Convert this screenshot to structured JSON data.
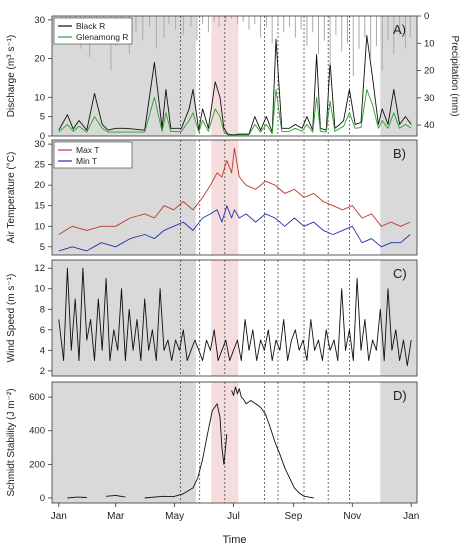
{
  "figure": {
    "xlabel": "Time",
    "month_ticks": [
      "Jan",
      "Mar",
      "May",
      "Jul",
      "Sep",
      "Nov",
      "Jan"
    ],
    "month_tick_days": [
      1,
      60,
      121,
      182,
      244,
      305,
      366
    ],
    "colors": {
      "background_shade": "#d9d9d9",
      "highlight_shade": "#f6dddd",
      "vline": "#333333",
      "precip": "#aaaaaa",
      "black_r": "#111111",
      "glenamong_r": "#2ca02c",
      "max_t": "#c0392b",
      "min_t": "#2233aa",
      "line": "#111111"
    }
  },
  "chart_data": [
    {
      "id": "A",
      "type": "line",
      "panel_label": "A)",
      "ylabel": "Discharge (m³ s⁻¹)",
      "ylabel_right": "Precipitation (mm)",
      "yticks": [
        0,
        5,
        10,
        20,
        30
      ],
      "ylim": [
        0,
        31
      ],
      "y2ticks": [
        0,
        10,
        20,
        30,
        40
      ],
      "y2lim": [
        0,
        44
      ],
      "series": [
        {
          "name": "Black R",
          "x": [
            1,
            10,
            16,
            22,
            30,
            38,
            46,
            52,
            60,
            64,
            70,
            90,
            100,
            108,
            112,
            117,
            121,
            128,
            136,
            140,
            146,
            150,
            156,
            163,
            168,
            172,
            176,
            182,
            187,
            193,
            198,
            204,
            210,
            216,
            222,
            226,
            232,
            240,
            246,
            253,
            258,
            264,
            268,
            272,
            278,
            282,
            287,
            292,
            296,
            302,
            308,
            314,
            320,
            326,
            332,
            336,
            342,
            348,
            354,
            360,
            366
          ],
          "y": [
            1.5,
            5.5,
            1.8,
            4,
            1.5,
            11,
            3,
            1.5,
            2,
            2,
            2,
            1.5,
            19,
            2,
            12,
            2,
            2,
            2,
            7,
            12,
            1.5,
            7,
            2,
            14,
            10,
            2,
            0.5,
            0.3,
            0.5,
            0.5,
            0.5,
            5,
            1.5,
            5,
            1,
            25,
            2,
            2,
            3,
            2,
            5,
            1.5,
            21,
            2,
            1.5,
            19,
            2,
            3,
            4,
            12,
            3,
            3.5,
            26,
            15,
            3,
            7,
            3,
            12,
            3,
            5,
            3
          ]
        },
        {
          "name": "Glenamong R",
          "x": [
            1,
            10,
            16,
            22,
            30,
            38,
            46,
            52,
            60,
            64,
            70,
            90,
            100,
            108,
            112,
            117,
            121,
            128,
            136,
            140,
            146,
            150,
            156,
            163,
            168,
            172,
            176,
            182,
            187,
            193,
            198,
            204,
            210,
            216,
            222,
            226,
            232,
            240,
            246,
            253,
            258,
            264,
            268,
            272,
            278,
            282,
            287,
            292,
            296,
            302,
            308,
            314,
            320,
            326,
            332,
            336,
            342,
            348,
            354,
            360,
            366
          ],
          "y": [
            1,
            3,
            1.2,
            2.5,
            1,
            5,
            2,
            1,
            1,
            1,
            1,
            1,
            10,
            1.2,
            6,
            1.2,
            1.2,
            1.2,
            4,
            6,
            1,
            4,
            1.2,
            7,
            5,
            1.2,
            0.3,
            0.2,
            0.3,
            0.3,
            0.3,
            3,
            1,
            3,
            0.6,
            12,
            1.2,
            1.2,
            2,
            1.2,
            3,
            1,
            10,
            1.2,
            1,
            9,
            1.2,
            2,
            2.5,
            6,
            2,
            2.2,
            12,
            8,
            2,
            4,
            2,
            6,
            2,
            3,
            2
          ]
        },
        {
          "name": "Precipitation",
          "axis": "right",
          "x": [
            4,
            9,
            13,
            18,
            24,
            28,
            33,
            40,
            47,
            55,
            60,
            66,
            74,
            81,
            88,
            95,
            102,
            110,
            115,
            122,
            130,
            138,
            144,
            150,
            156,
            162,
            167,
            174,
            180,
            186,
            192,
            198,
            204,
            210,
            216,
            222,
            228,
            234,
            240,
            246,
            252,
            258,
            264,
            270,
            276,
            282,
            288,
            294,
            300,
            306,
            312,
            318,
            324,
            330,
            336,
            342,
            348,
            354,
            360,
            365
          ],
          "y": [
            6,
            10,
            4,
            8,
            12,
            5,
            15,
            7,
            9,
            20,
            11,
            5,
            14,
            6,
            9,
            4,
            12,
            8,
            3,
            5,
            7,
            4,
            9,
            3,
            6,
            2,
            4,
            2,
            1,
            3,
            2,
            5,
            3,
            8,
            4,
            10,
            3,
            6,
            4,
            8,
            5,
            11,
            6,
            14,
            9,
            18,
            7,
            13,
            10,
            22,
            12,
            8,
            16,
            11,
            20,
            9,
            14,
            7,
            12,
            8
          ]
        }
      ]
    },
    {
      "id": "B",
      "type": "line",
      "panel_label": "B)",
      "ylabel": "Air Temperature (°C)",
      "yticks": [
        5,
        10,
        15,
        20,
        25,
        30
      ],
      "ylim": [
        3,
        31
      ],
      "series": [
        {
          "name": "Max T",
          "x": [
            1,
            15,
            30,
            45,
            60,
            75,
            90,
            100,
            110,
            120,
            130,
            140,
            150,
            158,
            165,
            170,
            175,
            180,
            183,
            188,
            195,
            205,
            215,
            225,
            235,
            245,
            255,
            265,
            275,
            285,
            295,
            305,
            315,
            325,
            335,
            345,
            355,
            365
          ],
          "y": [
            8,
            10,
            9,
            10,
            10,
            12,
            13,
            12,
            15,
            14,
            16,
            14,
            17,
            20,
            23,
            22,
            26,
            23,
            29,
            22,
            20,
            19,
            21,
            20,
            18,
            19,
            17,
            18,
            16,
            15,
            14,
            15,
            12,
            13,
            10,
            11,
            10,
            11
          ]
        },
        {
          "name": "Min T",
          "x": [
            1,
            15,
            30,
            45,
            60,
            75,
            90,
            100,
            110,
            120,
            130,
            140,
            150,
            158,
            165,
            170,
            175,
            180,
            183,
            188,
            195,
            205,
            215,
            225,
            235,
            245,
            255,
            265,
            275,
            285,
            295,
            305,
            315,
            325,
            335,
            345,
            355,
            365
          ],
          "y": [
            4,
            5,
            4,
            6,
            5,
            7,
            8,
            7,
            9,
            10,
            11,
            9,
            12,
            13,
            14,
            11,
            15,
            12,
            14,
            12,
            13,
            11,
            13,
            12,
            10,
            12,
            10,
            11,
            9,
            8,
            9,
            10,
            6,
            7,
            5,
            6,
            6,
            8
          ]
        }
      ]
    },
    {
      "id": "C",
      "type": "line",
      "panel_label": "C)",
      "ylabel": "Wind Speed (m s⁻¹)",
      "yticks": [
        2,
        4,
        6,
        8,
        10,
        12
      ],
      "ylim": [
        1.5,
        12.8
      ],
      "series": [
        {
          "name": "Wind Speed",
          "x": [
            1,
            6,
            10,
            14,
            18,
            22,
            26,
            30,
            34,
            38,
            42,
            46,
            50,
            54,
            58,
            62,
            66,
            70,
            74,
            78,
            82,
            86,
            90,
            94,
            98,
            102,
            106,
            110,
            114,
            118,
            122,
            126,
            130,
            134,
            138,
            142,
            146,
            150,
            154,
            158,
            162,
            166,
            170,
            174,
            178,
            182,
            186,
            190,
            194,
            198,
            202,
            206,
            210,
            214,
            218,
            222,
            226,
            230,
            234,
            238,
            242,
            246,
            250,
            254,
            258,
            262,
            266,
            270,
            274,
            278,
            282,
            286,
            290,
            294,
            298,
            302,
            306,
            310,
            314,
            318,
            322,
            326,
            330,
            334,
            338,
            342,
            346,
            350,
            354,
            358,
            362,
            366
          ],
          "y": [
            7,
            3,
            12,
            4,
            9,
            3,
            12,
            5,
            7,
            3,
            9,
            4,
            11,
            3,
            6,
            4,
            10,
            3,
            8,
            4,
            7,
            3,
            9,
            4,
            6,
            3,
            10,
            4,
            5,
            3,
            5,
            4,
            6,
            3,
            4,
            5,
            4,
            3,
            5,
            4,
            6,
            3,
            4,
            5,
            3,
            4,
            5,
            3,
            7,
            4,
            6,
            3,
            5,
            4,
            6,
            3,
            5,
            4,
            7,
            3,
            5,
            6,
            4,
            5,
            3,
            7,
            4,
            5,
            3,
            6,
            4,
            5,
            3,
            10,
            4,
            6,
            3,
            11,
            4,
            7,
            3,
            5,
            4,
            8,
            3,
            10,
            4,
            6,
            3,
            5,
            2.5,
            5
          ]
        }
      ]
    },
    {
      "id": "D",
      "type": "line",
      "panel_label": "D)",
      "ylabel": "Schmidt Stability (J m⁻²)",
      "yticks": [
        0,
        200,
        400,
        600
      ],
      "ylim": [
        -30,
        690
      ],
      "series": [
        {
          "name": "Schmidt Stability",
          "x": [
            10,
            20,
            30,
            40,
            50,
            60,
            70,
            80,
            90,
            100,
            110,
            120,
            130,
            140,
            145,
            150,
            155,
            160,
            165,
            168,
            170,
            172,
            175,
            178,
            180,
            182,
            184,
            186,
            188,
            190,
            192,
            195,
            200,
            205,
            210,
            215,
            220,
            225,
            230,
            235,
            240,
            245,
            250,
            255,
            260,
            265,
            270,
            275,
            280
          ],
          "y": [
            0,
            5,
            3,
            null,
            10,
            15,
            5,
            null,
            0,
            5,
            10,
            8,
            25,
            60,
            120,
            230,
            380,
            520,
            560,
            480,
            300,
            200,
            380,
            null,
            640,
            610,
            660,
            620,
            650,
            600,
            590,
            560,
            580,
            560,
            540,
            500,
            420,
            330,
            260,
            180,
            120,
            60,
            30,
            10,
            5,
            0,
            null,
            0,
            null
          ]
        }
      ]
    }
  ]
}
